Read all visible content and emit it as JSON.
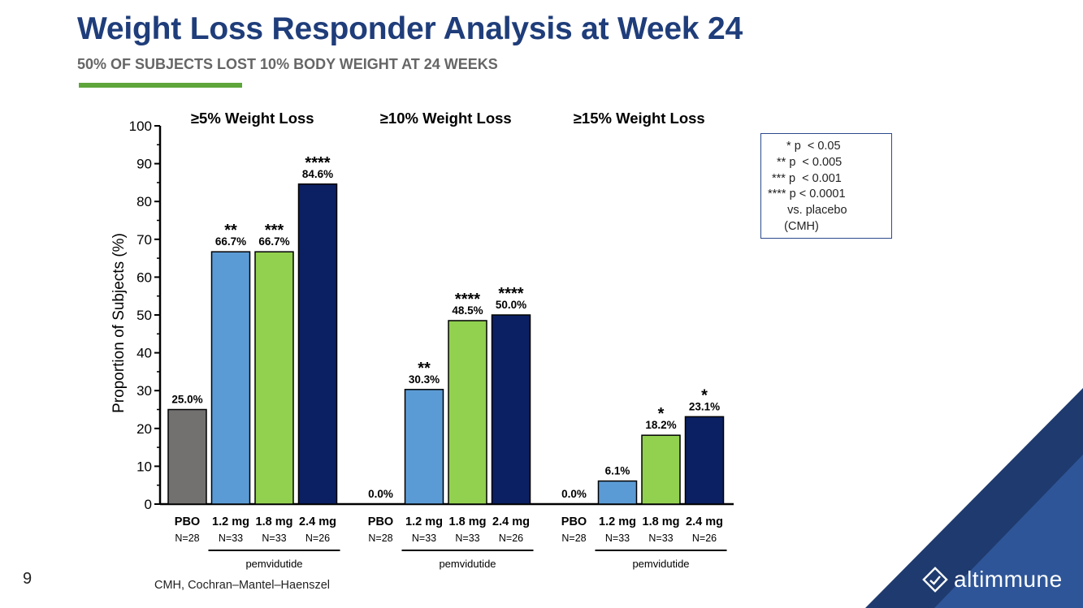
{
  "header": {
    "title": "Weight Loss Responder Analysis at Week 24",
    "subtitle": "50% OF SUBJECTS LOST 10% BODY WEIGHT AT 24 WEEKS"
  },
  "colors": {
    "title": "#1f3d7a",
    "accent_green": "#5ea53b",
    "pbo": "#737070",
    "dose_1_2": "#5b9bd5",
    "dose_1_8": "#92d050",
    "dose_2_4": "#0a2062",
    "corner_dark": "#1f3a6e",
    "corner_mid": "#2e5597"
  },
  "chart_data": {
    "type": "bar",
    "ylabel": "Proportion of Subjects (%)",
    "ylim": [
      0,
      100
    ],
    "y_ticks": [
      0,
      10,
      20,
      30,
      40,
      50,
      60,
      70,
      80,
      90,
      100
    ],
    "categories": [
      "PBO",
      "1.2 mg",
      "1.8 mg",
      "2.4 mg"
    ],
    "n_labels": [
      "N=28",
      "N=33",
      "N=33",
      "N=26"
    ],
    "group_label": "pemvidutide",
    "panels": [
      {
        "title": "≥5% Weight Loss",
        "values": [
          25.0,
          66.7,
          66.7,
          84.6
        ],
        "value_labels": [
          "25.0%",
          "66.7%",
          "66.7%",
          "84.6%"
        ],
        "significance": [
          "",
          "**",
          "***",
          "****"
        ]
      },
      {
        "title": "≥10% Weight Loss",
        "values": [
          0.0,
          30.3,
          48.5,
          50.0
        ],
        "value_labels": [
          "0.0%",
          "30.3%",
          "48.5%",
          "50.0%"
        ],
        "significance": [
          "",
          "**",
          "****",
          "****"
        ]
      },
      {
        "title": "≥15% Weight Loss",
        "values": [
          0.0,
          6.1,
          18.2,
          23.1
        ],
        "value_labels": [
          "0.0%",
          "6.1%",
          "18.2%",
          "23.1%"
        ],
        "significance": [
          "",
          "",
          "*",
          "*"
        ]
      }
    ]
  },
  "legend": {
    "lines": [
      " * p  < 0.05",
      "** p  < 0.005",
      "*** p  < 0.001",
      "**** p < 0.0001",
      "      vs. placebo",
      "     (CMH)"
    ]
  },
  "footer": {
    "page_number": "9",
    "footnote": "CMH, Cochran–Mantel–Haenszel",
    "logo_text": "altimmune",
    "logo_icon": "diamond-check-icon"
  }
}
